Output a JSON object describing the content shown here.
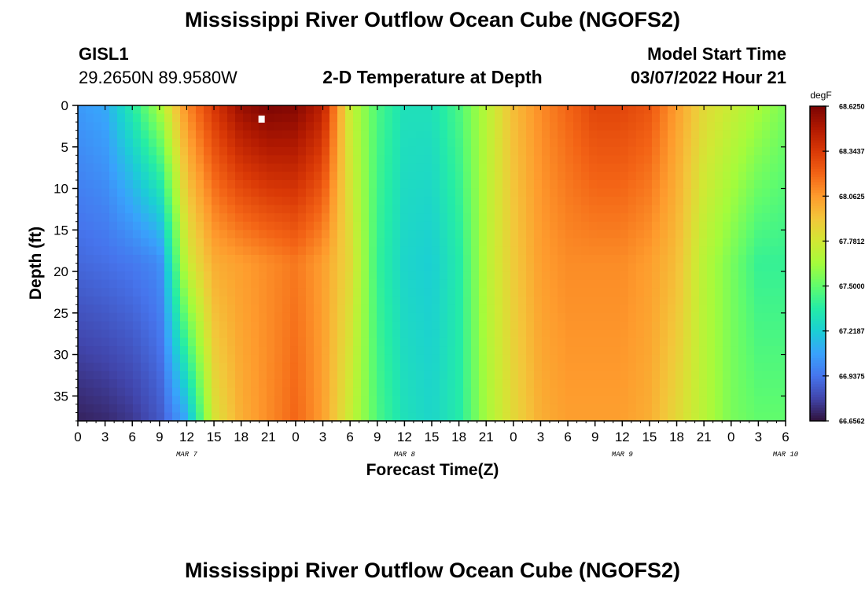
{
  "header": {
    "title": "Mississippi River Outflow Ocean Cube (NGOFS2)",
    "station_id": "GISL1",
    "station_coords": "29.2650N  89.9580W",
    "subtitle": "2-D Temperature at Depth",
    "model_start_label": "Model Start Time",
    "model_start_value": "03/07/2022 Hour 21"
  },
  "footer": {
    "title": "Mississippi River Outflow Ocean Cube (NGOFS2)"
  },
  "chart_data": {
    "type": "heatmap",
    "title": "2-D Temperature at Depth",
    "xlabel": "Forecast Time(Z)",
    "ylabel": "Depth (ft)",
    "x_tick_labels": [
      "0",
      "3",
      "6",
      "9",
      "12",
      "15",
      "18",
      "21",
      "0",
      "3",
      "6",
      "9",
      "12",
      "15",
      "18",
      "21",
      "0",
      "3",
      "6",
      "9",
      "12",
      "15",
      "18",
      "21",
      "0",
      "3",
      "6"
    ],
    "x_range_hours": [
      0,
      78
    ],
    "date_labels": [
      {
        "label": "MAR 7",
        "hour": 12
      },
      {
        "label": "MAR 8",
        "hour": 36
      },
      {
        "label": "MAR 9",
        "hour": 60
      },
      {
        "label": "MAR 10",
        "hour": 78
      }
    ],
    "y_tick_labels": [
      "0",
      "5",
      "10",
      "15",
      "20",
      "25",
      "30",
      "35"
    ],
    "y_range_ft": [
      0,
      38
    ],
    "y_inverted": true,
    "colorbar": {
      "unit": "degF",
      "min": 66.65625,
      "max": 68.625,
      "tick_labels": [
        "68.6250",
        "68.3437",
        "68.0625",
        "67.7812",
        "67.5000",
        "67.2187",
        "66.9375",
        "66.6562"
      ]
    },
    "columns_by_hour": [
      {
        "hour": 0,
        "top": 67.05,
        "mid": 66.9,
        "bottom": 66.7
      },
      {
        "hour": 3,
        "top": 67.1,
        "mid": 66.92,
        "bottom": 66.72
      },
      {
        "hour": 6,
        "top": 67.35,
        "mid": 66.95,
        "bottom": 66.76
      },
      {
        "hour": 9,
        "top": 67.65,
        "mid": 67.0,
        "bottom": 66.85
      },
      {
        "hour": 12,
        "top": 68.1,
        "mid": 67.75,
        "bottom": 67.1
      },
      {
        "hour": 15,
        "top": 68.35,
        "mid": 68.0,
        "bottom": 67.8
      },
      {
        "hour": 18,
        "top": 68.55,
        "mid": 68.05,
        "bottom": 68.0
      },
      {
        "hour": 21,
        "top": 68.62,
        "mid": 68.1,
        "bottom": 68.1
      },
      {
        "hour": 24,
        "top": 68.6,
        "mid": 68.15,
        "bottom": 68.2
      },
      {
        "hour": 27,
        "top": 68.45,
        "mid": 68.05,
        "bottom": 68.05
      },
      {
        "hour": 30,
        "top": 67.75,
        "mid": 67.85,
        "bottom": 67.75
      },
      {
        "hour": 33,
        "top": 67.45,
        "mid": 67.4,
        "bottom": 67.45
      },
      {
        "hour": 36,
        "top": 67.3,
        "mid": 67.25,
        "bottom": 67.3
      },
      {
        "hour": 39,
        "top": 67.3,
        "mid": 67.22,
        "bottom": 67.25
      },
      {
        "hour": 42,
        "top": 67.45,
        "mid": 67.35,
        "bottom": 67.35
      },
      {
        "hour": 45,
        "top": 67.7,
        "mid": 67.7,
        "bottom": 67.65
      },
      {
        "hour": 48,
        "top": 67.95,
        "mid": 67.9,
        "bottom": 67.85
      },
      {
        "hour": 51,
        "top": 68.1,
        "mid": 68.05,
        "bottom": 68.0
      },
      {
        "hour": 54,
        "top": 68.2,
        "mid": 68.1,
        "bottom": 68.05
      },
      {
        "hour": 57,
        "top": 68.3,
        "mid": 68.1,
        "bottom": 68.05
      },
      {
        "hour": 60,
        "top": 68.3,
        "mid": 68.1,
        "bottom": 68.05
      },
      {
        "hour": 63,
        "top": 68.25,
        "mid": 68.05,
        "bottom": 68.0
      },
      {
        "hour": 66,
        "top": 68.05,
        "mid": 67.95,
        "bottom": 67.85
      },
      {
        "hour": 69,
        "top": 67.85,
        "mid": 67.7,
        "bottom": 67.7
      },
      {
        "hour": 72,
        "top": 67.75,
        "mid": 67.55,
        "bottom": 67.55
      },
      {
        "hour": 75,
        "top": 67.65,
        "mid": 67.4,
        "bottom": 67.5
      },
      {
        "hour": 78,
        "top": 67.55,
        "mid": 67.4,
        "bottom": 67.5
      }
    ]
  },
  "colors": {
    "colormap": [
      "#30123b",
      "#4145ab",
      "#4675ed",
      "#39a2fc",
      "#1bcfd4",
      "#24eca6",
      "#61fc6c",
      "#a4fc3b",
      "#d1e834",
      "#f3c63a",
      "#fe9b2d",
      "#f36315",
      "#d93806",
      "#b11901",
      "#7a0403"
    ],
    "marker": "#ffffff"
  }
}
